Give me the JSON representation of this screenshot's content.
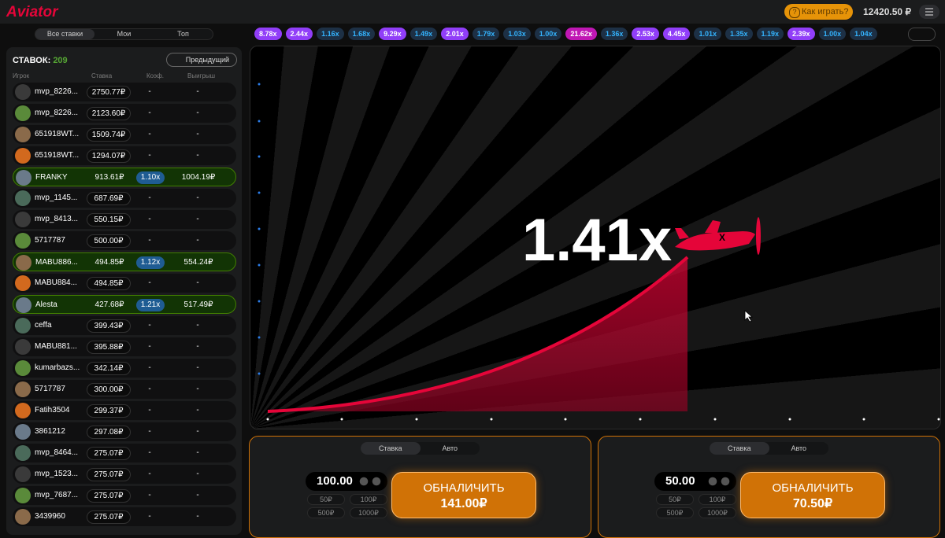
{
  "header": {
    "logo": "Aviator",
    "how_to_play": "Как играть?",
    "balance": "12420.50 ₽"
  },
  "tabs": [
    "Все ставки",
    "Мои",
    "Топ"
  ],
  "history": [
    "8.78x",
    "2.44x",
    "1.16x",
    "1.68x",
    "9.29x",
    "1.49x",
    "2.01x",
    "1.79x",
    "1.03x",
    "1.00x",
    "21.62x",
    "1.36x",
    "2.53x",
    "4.45x",
    "1.01x",
    "1.35x",
    "1.19x",
    "2.39x",
    "1.00x",
    "1.04x"
  ],
  "bets": {
    "count_label": "СТАВОК:",
    "count": "209",
    "previous": "Предыдущий",
    "columns": [
      "Игрок",
      "Ставка",
      "Коэф.",
      "Выигрыш"
    ],
    "rows": [
      {
        "player": "mvp_8226...",
        "bet": "2750.77₽",
        "coef": "-",
        "win": "-",
        "won": false
      },
      {
        "player": "mvp_8226...",
        "bet": "2123.60₽",
        "coef": "-",
        "win": "-",
        "won": false
      },
      {
        "player": "651918WT...",
        "bet": "1509.74₽",
        "coef": "-",
        "win": "-",
        "won": false
      },
      {
        "player": "651918WT...",
        "bet": "1294.07₽",
        "coef": "-",
        "win": "-",
        "won": false
      },
      {
        "player": "FRANKY",
        "bet": "913.61₽",
        "coef": "1.10x",
        "win": "1004.19₽",
        "won": true
      },
      {
        "player": "mvp_1145...",
        "bet": "687.69₽",
        "coef": "-",
        "win": "-",
        "won": false
      },
      {
        "player": "mvp_8413...",
        "bet": "550.15₽",
        "coef": "-",
        "win": "-",
        "won": false
      },
      {
        "player": "5717787",
        "bet": "500.00₽",
        "coef": "-",
        "win": "-",
        "won": false
      },
      {
        "player": "MABU886...",
        "bet": "494.85₽",
        "coef": "1.12x",
        "win": "554.24₽",
        "won": true
      },
      {
        "player": "MABU884...",
        "bet": "494.85₽",
        "coef": "-",
        "win": "-",
        "won": false
      },
      {
        "player": "Alesta",
        "bet": "427.68₽",
        "coef": "1.21x",
        "win": "517.49₽",
        "won": true
      },
      {
        "player": "ceffa",
        "bet": "399.43₽",
        "coef": "-",
        "win": "-",
        "won": false
      },
      {
        "player": "MABU881...",
        "bet": "395.88₽",
        "coef": "-",
        "win": "-",
        "won": false
      },
      {
        "player": "kumarbazs...",
        "bet": "342.14₽",
        "coef": "-",
        "win": "-",
        "won": false
      },
      {
        "player": "5717787",
        "bet": "300.00₽",
        "coef": "-",
        "win": "-",
        "won": false
      },
      {
        "player": "Fatih3504",
        "bet": "299.37₽",
        "coef": "-",
        "win": "-",
        "won": false
      },
      {
        "player": "3861212",
        "bet": "297.08₽",
        "coef": "-",
        "win": "-",
        "won": false
      },
      {
        "player": "mvp_8464...",
        "bet": "275.07₽",
        "coef": "-",
        "win": "-",
        "won": false
      },
      {
        "player": "mvp_1523...",
        "bet": "275.07₽",
        "coef": "-",
        "win": "-",
        "won": false
      },
      {
        "player": "mvp_7687...",
        "bet": "275.07₽",
        "coef": "-",
        "win": "-",
        "won": false
      },
      {
        "player": "3439960",
        "bet": "275.07₽",
        "coef": "-",
        "win": "-",
        "won": false
      }
    ]
  },
  "game": {
    "multiplier": "1.41x"
  },
  "panels": [
    {
      "tabs": [
        "Ставка",
        "Авто"
      ],
      "amount": "100.00",
      "quick": [
        "50₽",
        "100₽",
        "500₽",
        "1000₽"
      ],
      "cashout": "ОБНАЛИЧИТЬ",
      "cashout_amount": "141.00₽"
    },
    {
      "tabs": [
        "Ставка",
        "Авто"
      ],
      "amount": "50.00",
      "quick": [
        "50₽",
        "100₽",
        "500₽",
        "1000₽"
      ],
      "cashout": "ОБНАЛИЧИТЬ",
      "cashout_amount": "70.50₽"
    }
  ]
}
